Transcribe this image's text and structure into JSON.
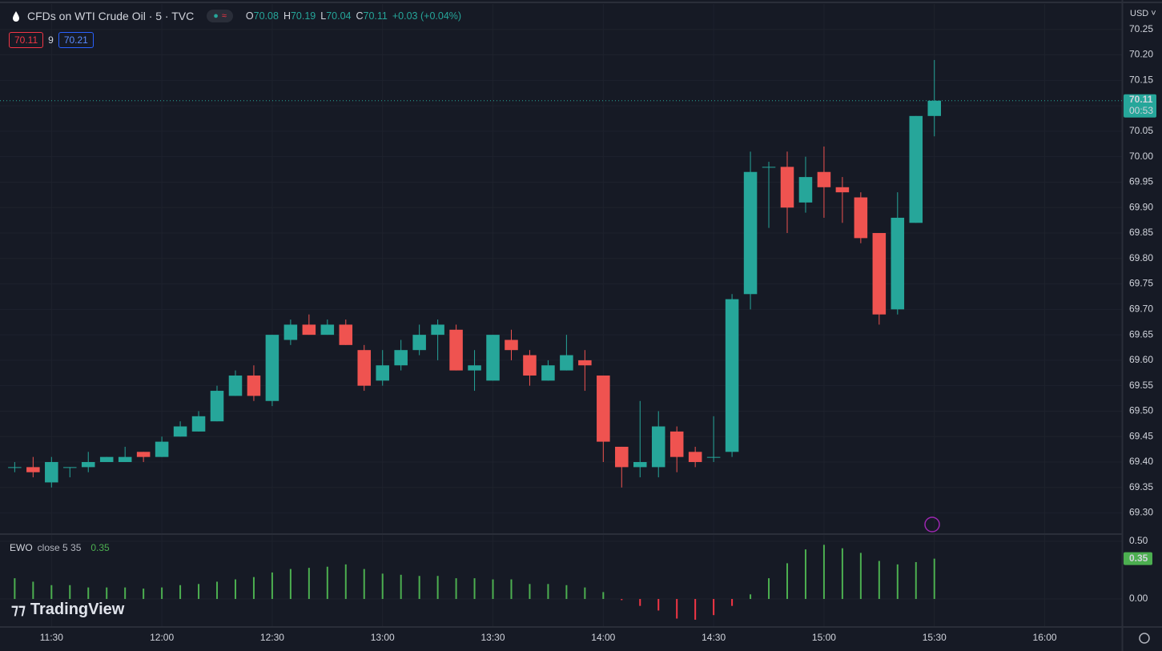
{
  "header": {
    "title": "CFDs on WTI Crude Oil · 5 · TVC",
    "o_key": "O",
    "o": "70.08",
    "h_key": "H",
    "h": "70.19",
    "l_key": "L",
    "l": "70.04",
    "c_key": "C",
    "c": "70.11",
    "change": "+0.03 (+0.04%)",
    "bid": "70.11",
    "spread": "9",
    "ask": "70.21",
    "currency": "USD",
    "last_price": "70.11",
    "countdown": "00:53",
    "ewo_name": "EWO",
    "ewo_params": "close 5 35",
    "ewo_value": "0.35",
    "ewo_axis_label": "0.35",
    "logo": "TradingView"
  },
  "chart_data": [
    {
      "type": "candlestick",
      "colors": {
        "up": "#26a69a",
        "down": "#ef5350"
      },
      "grid": true,
      "x": [
        "11:20",
        "11:25",
        "11:30",
        "11:35",
        "11:40",
        "11:45",
        "11:50",
        "11:55",
        "12:00",
        "12:05",
        "12:10",
        "12:15",
        "12:20",
        "12:25",
        "12:30",
        "12:35",
        "12:40",
        "12:45",
        "12:50",
        "12:55",
        "13:00",
        "13:05",
        "13:10",
        "13:15",
        "13:20",
        "13:25",
        "13:30",
        "13:35",
        "13:40",
        "13:45",
        "13:50",
        "13:55",
        "14:00",
        "14:05",
        "14:10",
        "14:15",
        "14:20",
        "14:25",
        "14:30",
        "14:35",
        "14:40",
        "14:45",
        "14:50",
        "14:55",
        "15:00",
        "15:05",
        "15:10",
        "15:15",
        "15:20",
        "15:25",
        "15:30"
      ],
      "open": [
        69.39,
        69.39,
        69.36,
        69.39,
        69.39,
        69.4,
        69.4,
        69.42,
        69.41,
        69.45,
        69.46,
        69.48,
        69.53,
        69.57,
        69.52,
        69.64,
        69.67,
        69.65,
        69.67,
        69.62,
        69.56,
        69.59,
        69.62,
        69.65,
        69.66,
        69.58,
        69.56,
        69.64,
        69.61,
        69.56,
        69.58,
        69.6,
        69.57,
        69.43,
        69.39,
        69.39,
        69.46,
        69.42,
        69.41,
        69.42,
        69.73,
        69.98,
        69.98,
        69.91,
        69.97,
        69.94,
        69.92,
        69.85,
        69.7,
        69.87,
        70.08
      ],
      "high": [
        69.4,
        69.41,
        69.41,
        69.39,
        69.42,
        69.41,
        69.43,
        69.42,
        69.45,
        69.48,
        69.5,
        69.55,
        69.58,
        69.59,
        69.65,
        69.68,
        69.69,
        69.68,
        69.68,
        69.63,
        69.62,
        69.64,
        69.67,
        69.68,
        69.67,
        69.62,
        69.65,
        69.66,
        69.62,
        69.6,
        69.65,
        69.62,
        69.57,
        69.43,
        69.52,
        69.5,
        69.47,
        69.43,
        69.49,
        69.73,
        70.01,
        69.99,
        70.01,
        70.0,
        70.02,
        69.96,
        69.93,
        69.85,
        69.93,
        70.08,
        70.19
      ],
      "low": [
        69.38,
        69.37,
        69.35,
        69.37,
        69.38,
        69.4,
        69.4,
        69.4,
        69.41,
        69.45,
        69.46,
        69.48,
        69.53,
        69.52,
        69.51,
        69.63,
        69.65,
        69.65,
        69.63,
        69.54,
        69.55,
        69.58,
        69.61,
        69.6,
        69.58,
        69.54,
        69.56,
        69.6,
        69.55,
        69.56,
        69.58,
        69.54,
        69.4,
        69.35,
        69.37,
        69.37,
        69.38,
        69.39,
        69.4,
        69.41,
        69.7,
        69.86,
        69.85,
        69.89,
        69.88,
        69.87,
        69.83,
        69.67,
        69.69,
        69.87,
        70.04
      ],
      "close": [
        69.39,
        69.38,
        69.4,
        69.39,
        69.4,
        69.41,
        69.41,
        69.41,
        69.44,
        69.47,
        69.49,
        69.54,
        69.57,
        69.53,
        69.65,
        69.67,
        69.65,
        69.67,
        69.63,
        69.55,
        69.59,
        69.62,
        69.65,
        69.67,
        69.58,
        69.59,
        69.65,
        69.62,
        69.57,
        69.59,
        69.61,
        69.59,
        69.44,
        69.39,
        69.4,
        69.47,
        69.41,
        69.4,
        69.41,
        69.72,
        69.97,
        69.98,
        69.9,
        69.96,
        69.94,
        69.93,
        69.84,
        69.69,
        69.88,
        70.08,
        70.11
      ],
      "xlim": [
        "11:16",
        "16:21"
      ],
      "xticks": [
        "11:30",
        "12:00",
        "12:30",
        "13:00",
        "13:30",
        "14:00",
        "14:30",
        "15:00",
        "15:30",
        "16:00"
      ],
      "ylim": [
        69.26,
        70.3
      ],
      "yticks": [
        {
          "value": 69.3,
          "label": "69.30"
        },
        69.35,
        {
          "value": 69.4,
          "label": "69.40"
        },
        69.45,
        {
          "value": 69.5,
          "label": "69.50"
        },
        69.55,
        {
          "value": 69.6,
          "label": "69.60"
        },
        69.65,
        {
          "value": 69.7,
          "label": "69.70"
        },
        69.75,
        {
          "value": 69.8,
          "label": "69.80"
        },
        69.85,
        {
          "value": 69.9,
          "label": "69.90"
        },
        69.95,
        {
          "value": 70,
          "label": "70.00"
        },
        70.05,
        {
          "value": 70.1,
          "label": "70.10"
        },
        70.15,
        {
          "value": 70.2,
          "label": "70.20"
        },
        70.25
      ]
    },
    {
      "type": "bar",
      "name": "EWO",
      "colors": {
        "up": "#4caf50",
        "down": "#f23645"
      },
      "values": [
        0.18,
        0.15,
        0.12,
        0.12,
        0.1,
        0.1,
        0.1,
        0.09,
        0.1,
        0.12,
        0.13,
        0.15,
        0.17,
        0.19,
        0.23,
        0.26,
        0.27,
        0.28,
        0.3,
        0.26,
        0.22,
        0.21,
        0.2,
        0.2,
        0.18,
        0.18,
        0.17,
        0.17,
        0.13,
        0.13,
        0.12,
        0.1,
        0.06,
        -0.01,
        -0.06,
        -0.1,
        -0.17,
        -0.18,
        -0.14,
        -0.06,
        0.04,
        0.18,
        0.31,
        0.43,
        0.47,
        0.44,
        0.4,
        0.33,
        0.3,
        0.32,
        0.35
      ],
      "ylim": [
        -0.236,
        0.556
      ],
      "yticks": [
        {
          "value": 0.5,
          "label": "0.50"
        },
        {
          "value": 0,
          "label": "0.00"
        }
      ]
    }
  ]
}
